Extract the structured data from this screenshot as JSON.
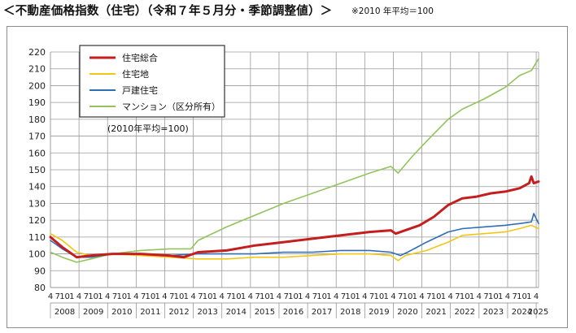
{
  "header": {
    "title": "＜不動産価格指数（住宅）（令和７年５月分・季節調整値）＞",
    "note": "※2010 年平均＝100"
  },
  "colors": {
    "total": "#c41e1e",
    "land": "#f2c617",
    "house": "#2f6db5",
    "condo": "#93c35a",
    "grid": "#9a9a9a"
  },
  "chart_data": {
    "type": "line",
    "ylim": [
      80,
      220
    ],
    "ytick_step": 10,
    "grid": true,
    "legend_position": "top-left",
    "legend_note": "(2010年平均=100)",
    "month_labels": [
      "4",
      "7",
      "10",
      "1"
    ],
    "last_month_label": "4",
    "years": [
      "2008",
      "2009",
      "2010",
      "2011",
      "2012",
      "2013",
      "2014",
      "2015",
      "2016",
      "2017",
      "2018",
      "2019",
      "2020",
      "2021",
      "2022",
      "2023",
      "2024",
      "2025"
    ],
    "x_start": "2008-04",
    "x_end": "2025-05",
    "series": [
      {
        "key": "total",
        "name": "住宅総合",
        "color": "#c41e1e",
        "width": 3,
        "x": [
          "2008-04",
          "2008-09",
          "2009-03",
          "2009-09",
          "2010-06",
          "2011-06",
          "2012-06",
          "2012-12",
          "2013-06",
          "2014-06",
          "2015-06",
          "2016-06",
          "2017-06",
          "2018-06",
          "2019-06",
          "2020-03",
          "2020-05",
          "2020-09",
          "2021-03",
          "2021-09",
          "2022-03",
          "2022-09",
          "2023-03",
          "2023-09",
          "2024-03",
          "2024-09",
          "2025-01",
          "2025-02",
          "2025-03",
          "2025-05"
        ],
        "y": [
          110,
          104,
          98,
          99,
          100,
          100,
          99,
          98,
          101,
          102,
          105,
          107,
          109,
          111,
          113,
          114,
          112,
          114,
          117,
          122,
          129,
          133,
          134,
          136,
          137,
          139,
          142,
          146,
          142,
          143
        ]
      },
      {
        "key": "land",
        "name": "住宅地",
        "color": "#f2c617",
        "width": 1.6,
        "x": [
          "2008-04",
          "2008-09",
          "2009-03",
          "2009-09",
          "2010-06",
          "2011-06",
          "2012-06",
          "2013-06",
          "2014-06",
          "2015-06",
          "2016-06",
          "2017-06",
          "2018-06",
          "2019-06",
          "2020-03",
          "2020-06",
          "2020-09",
          "2021-06",
          "2022-03",
          "2022-09",
          "2023-06",
          "2024-03",
          "2024-09",
          "2025-02",
          "2025-05"
        ],
        "y": [
          112,
          108,
          101,
          99,
          100,
          99,
          98,
          97,
          97,
          98,
          98,
          99,
          100,
          100,
          99,
          96,
          99,
          102,
          107,
          111,
          112,
          113,
          115,
          117,
          115
        ]
      },
      {
        "key": "house",
        "name": "戸建住宅",
        "color": "#2f6db5",
        "width": 1.6,
        "x": [
          "2008-04",
          "2008-09",
          "2009-03",
          "2009-09",
          "2010-06",
          "2011-06",
          "2012-06",
          "2013-06",
          "2014-06",
          "2015-06",
          "2016-06",
          "2017-06",
          "2018-06",
          "2019-06",
          "2020-03",
          "2020-07",
          "2020-10",
          "2021-06",
          "2022-03",
          "2022-09",
          "2023-06",
          "2024-03",
          "2024-09",
          "2025-02",
          "2025-03",
          "2025-05"
        ],
        "y": [
          108,
          103,
          98,
          98,
          100,
          100,
          99,
          100,
          100,
          100,
          101,
          101,
          102,
          102,
          101,
          99,
          101,
          107,
          113,
          115,
          116,
          117,
          118,
          119,
          124,
          118
        ]
      },
      {
        "key": "condo",
        "name": "マンション（区分所有）",
        "color": "#93c35a",
        "width": 1.6,
        "x": [
          "2008-04",
          "2008-09",
          "2009-03",
          "2009-09",
          "2010-06",
          "2011-06",
          "2012-06",
          "2013-03",
          "2013-06",
          "2014-06",
          "2015-06",
          "2016-06",
          "2017-06",
          "2018-06",
          "2019-06",
          "2020-03",
          "2020-06",
          "2020-12",
          "2021-06",
          "2022-03",
          "2022-09",
          "2023-06",
          "2024-03",
          "2024-09",
          "2025-02",
          "2025-05"
        ],
        "y": [
          101,
          98,
          95,
          97,
          100,
          102,
          103,
          103,
          108,
          116,
          123,
          130,
          136,
          142,
          148,
          152,
          148,
          158,
          167,
          180,
          186,
          192,
          199,
          206,
          209,
          216
        ]
      }
    ]
  }
}
